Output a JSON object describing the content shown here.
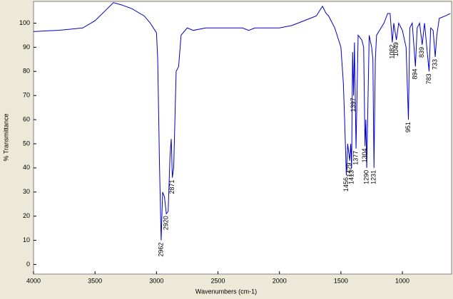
{
  "chart_data": {
    "type": "line",
    "x_label": "Wavenumbers (cm-1)",
    "y_label": "% Transmittance",
    "xlim": [
      4000,
      600
    ],
    "ylim": [
      -4,
      109
    ],
    "xticks": [
      4000,
      3500,
      3000,
      2500,
      2000,
      1500,
      1000
    ],
    "yticks": [
      0,
      10,
      20,
      30,
      40,
      50,
      60,
      70,
      80,
      90,
      100
    ],
    "grid": false,
    "series": [
      {
        "color": "#0000cc",
        "x": [
          4000,
          3900,
          3800,
          3700,
          3600,
          3500,
          3420,
          3350,
          3280,
          3200,
          3100,
          3050,
          3000,
          2990,
          2975,
          2962,
          2950,
          2935,
          2920,
          2905,
          2890,
          2880,
          2871,
          2860,
          2840,
          2820,
          2800,
          2750,
          2700,
          2600,
          2500,
          2400,
          2300,
          2250,
          2200,
          2100,
          2000,
          1900,
          1800,
          1750,
          1700,
          1650,
          1620,
          1600,
          1550,
          1500,
          1480,
          1470,
          1456,
          1445,
          1429,
          1420,
          1413,
          1405,
          1397,
          1390,
          1377,
          1360,
          1330,
          1315,
          1304,
          1297,
          1290,
          1270,
          1250,
          1240,
          1231,
          1220,
          1210,
          1150,
          1120,
          1100,
          1082,
          1070,
          1049,
          1030,
          1000,
          970,
          951,
          940,
          920,
          894,
          880,
          860,
          839,
          820,
          783,
          770,
          750,
          733,
          720,
          700,
          650,
          610
        ],
        "values": [
          96.5,
          96.8,
          97,
          97.5,
          98,
          101,
          105,
          108.5,
          107.5,
          106,
          103,
          100,
          96,
          85,
          40,
          10,
          30,
          28,
          21,
          22,
          45,
          52,
          36,
          40,
          80,
          82,
          95,
          98,
          97,
          98,
          98,
          98,
          98,
          97,
          98,
          98,
          98,
          99,
          101,
          102,
          103,
          107,
          104,
          103,
          98,
          90,
          75,
          60,
          37,
          50,
          43,
          50,
          40,
          88,
          70,
          92,
          48,
          95,
          93,
          90,
          49,
          60,
          40,
          95,
          90,
          85,
          40,
          85,
          95,
          100,
          104,
          104,
          92,
          100,
          93,
          100,
          97,
          90,
          60,
          98,
          100,
          82,
          98,
          100,
          91,
          100,
          80,
          98,
          97,
          86,
          95,
          102,
          103,
          104
        ]
      }
    ],
    "annotations": [
      {
        "text": "2962",
        "x": 2962,
        "y": 10
      },
      {
        "text": "2920",
        "x": 2920,
        "y": 21
      },
      {
        "text": "2871",
        "x": 2871,
        "y": 36
      },
      {
        "text": "1456",
        "x": 1456,
        "y": 37
      },
      {
        "text": "1429",
        "x": 1429,
        "y": 43
      },
      {
        "text": "1413",
        "x": 1413,
        "y": 40
      },
      {
        "text": "1397",
        "x": 1397,
        "y": 70
      },
      {
        "text": "1377",
        "x": 1377,
        "y": 48
      },
      {
        "text": "1304",
        "x": 1304,
        "y": 49
      },
      {
        "text": "1290",
        "x": 1290,
        "y": 40
      },
      {
        "text": "1231",
        "x": 1231,
        "y": 40
      },
      {
        "text": "1082",
        "x": 1082,
        "y": 92
      },
      {
        "text": "1049",
        "x": 1049,
        "y": 93
      },
      {
        "text": "951",
        "x": 951,
        "y": 60
      },
      {
        "text": "894",
        "x": 894,
        "y": 82
      },
      {
        "text": "839",
        "x": 839,
        "y": 91
      },
      {
        "text": "783",
        "x": 783,
        "y": 80
      },
      {
        "text": "733",
        "x": 733,
        "y": 86
      }
    ]
  }
}
